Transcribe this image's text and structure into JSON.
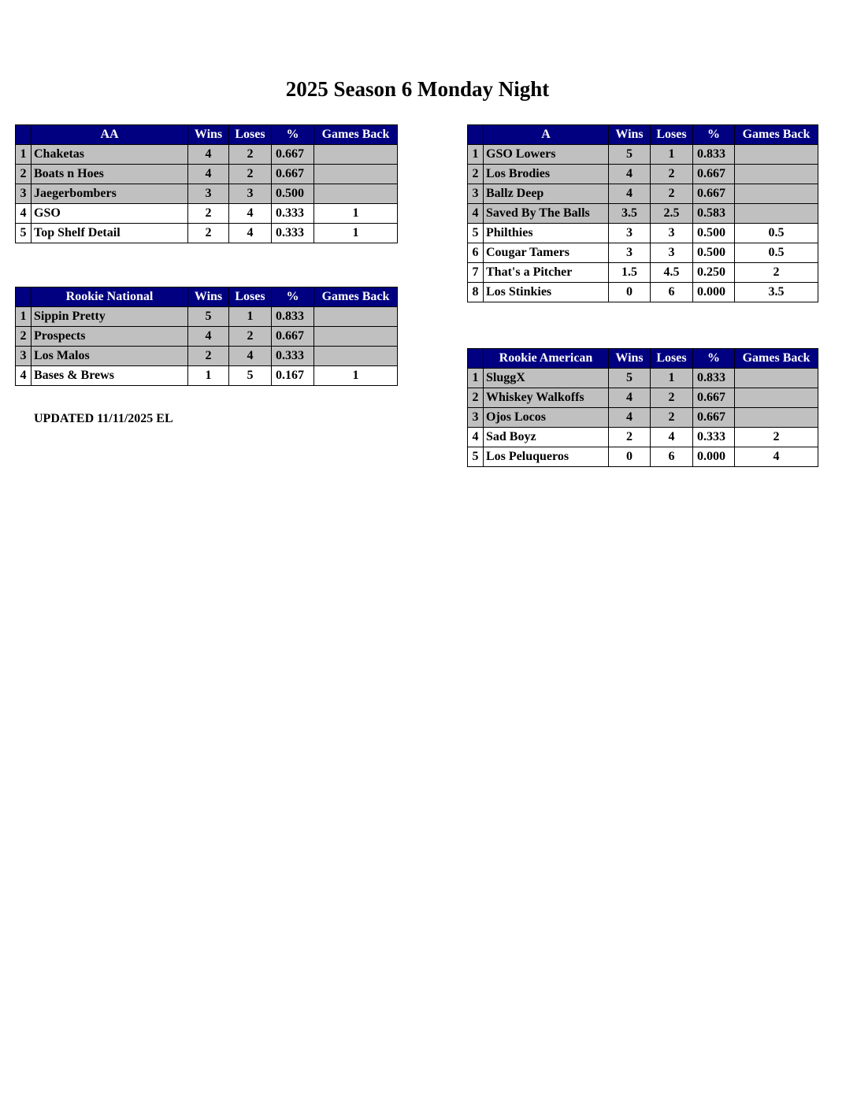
{
  "title": "2025 Season 6 Monday Night",
  "updated": "UPDATED 11/11/2025 EL",
  "colors": {
    "header_bg": "#000080",
    "header_text": "#ffffff",
    "highlight_row": "#c0c0c0"
  },
  "columns": {
    "wins": "Wins",
    "loses": "Loses",
    "pct": "%",
    "gb": "Games Back"
  },
  "tables": [
    {
      "id": "aa",
      "division": "AA",
      "rows": [
        {
          "rank": "1",
          "team": "Chaketas",
          "wins": "4",
          "loses": "2",
          "pct": "0.667",
          "gb": "",
          "highlight": true
        },
        {
          "rank": "2",
          "team": "Boats n Hoes",
          "wins": "4",
          "loses": "2",
          "pct": "0.667",
          "gb": "",
          "highlight": true
        },
        {
          "rank": "3",
          "team": "Jaegerbombers",
          "wins": "3",
          "loses": "3",
          "pct": "0.500",
          "gb": "",
          "highlight": true
        },
        {
          "rank": "4",
          "team": "GSO",
          "wins": "2",
          "loses": "4",
          "pct": "0.333",
          "gb": "1",
          "highlight": false
        },
        {
          "rank": "5",
          "team": "Top Shelf Detail",
          "wins": "2",
          "loses": "4",
          "pct": "0.333",
          "gb": "1",
          "highlight": false
        }
      ]
    },
    {
      "id": "rookie-national",
      "division": "Rookie National",
      "rows": [
        {
          "rank": "1",
          "team": "Sippin Pretty",
          "wins": "5",
          "loses": "1",
          "pct": "0.833",
          "gb": "",
          "highlight": true
        },
        {
          "rank": "2",
          "team": "Prospects",
          "wins": "4",
          "loses": "2",
          "pct": "0.667",
          "gb": "",
          "highlight": true
        },
        {
          "rank": "3",
          "team": "Los Malos",
          "wins": "2",
          "loses": "4",
          "pct": "0.333",
          "gb": "",
          "highlight": true
        },
        {
          "rank": "4",
          "team": "Bases & Brews",
          "wins": "1",
          "loses": "5",
          "pct": "0.167",
          "gb": "1",
          "highlight": false
        }
      ]
    },
    {
      "id": "a",
      "division": "A",
      "rows": [
        {
          "rank": "1",
          "team": "GSO Lowers",
          "wins": "5",
          "loses": "1",
          "pct": "0.833",
          "gb": "",
          "highlight": true
        },
        {
          "rank": "2",
          "team": "Los Brodies",
          "wins": "4",
          "loses": "2",
          "pct": "0.667",
          "gb": "",
          "highlight": true
        },
        {
          "rank": "3",
          "team": "Ballz Deep",
          "wins": "4",
          "loses": "2",
          "pct": "0.667",
          "gb": "",
          "highlight": true
        },
        {
          "rank": "4",
          "team": "Saved By The Balls",
          "wins": "3.5",
          "loses": "2.5",
          "pct": "0.583",
          "gb": "",
          "highlight": true
        },
        {
          "rank": "5",
          "team": "Philthies",
          "wins": "3",
          "loses": "3",
          "pct": "0.500",
          "gb": "0.5",
          "highlight": false
        },
        {
          "rank": "6",
          "team": "Cougar Tamers",
          "wins": "3",
          "loses": "3",
          "pct": "0.500",
          "gb": "0.5",
          "highlight": false
        },
        {
          "rank": "7",
          "team": "That's a Pitcher",
          "wins": "1.5",
          "loses": "4.5",
          "pct": "0.250",
          "gb": "2",
          "highlight": false
        },
        {
          "rank": "8",
          "team": "Los Stinkies",
          "wins": "0",
          "loses": "6",
          "pct": "0.000",
          "gb": "3.5",
          "highlight": false
        }
      ]
    },
    {
      "id": "rookie-american",
      "division": "Rookie American",
      "rows": [
        {
          "rank": "1",
          "team": "SluggX",
          "wins": "5",
          "loses": "1",
          "pct": "0.833",
          "gb": "",
          "highlight": true
        },
        {
          "rank": "2",
          "team": "Whiskey Walkoffs",
          "wins": "4",
          "loses": "2",
          "pct": "0.667",
          "gb": "",
          "highlight": true
        },
        {
          "rank": "3",
          "team": "Ojos Locos",
          "wins": "4",
          "loses": "2",
          "pct": "0.667",
          "gb": "",
          "highlight": true
        },
        {
          "rank": "4",
          "team": "Sad Boyz",
          "wins": "2",
          "loses": "4",
          "pct": "0.333",
          "gb": "2",
          "highlight": false
        },
        {
          "rank": "5",
          "team": "Los Peluqueros",
          "wins": "0",
          "loses": "6",
          "pct": "0.000",
          "gb": "4",
          "highlight": false
        }
      ]
    }
  ]
}
